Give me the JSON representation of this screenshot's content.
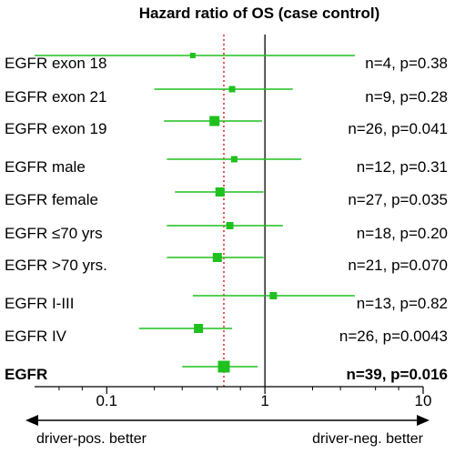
{
  "chart_data": {
    "type": "forest",
    "title": "Hazard ratio of OS (case control)",
    "xscale": "log",
    "xlim": [
      0.035,
      10
    ],
    "xticks": [
      0.1,
      1,
      10
    ],
    "xtick_labels": [
      "0.1",
      "1",
      "10"
    ],
    "reference_line": 1,
    "pooled_line": 0.55,
    "direction_left": "driver-pos. better",
    "direction_right": "driver-neg. better",
    "colors": {
      "marker": "#1fc11f",
      "pooled_line": "#e23030",
      "axis": "#000000"
    },
    "rows": [
      {
        "label": "EGFR exon 18",
        "hr": 0.35,
        "ci": [
          0.035,
          3.7
        ],
        "stats": "n=4, p=0.38",
        "bold": false
      },
      {
        "label": "EGFR exon 21",
        "hr": 0.62,
        "ci": [
          0.2,
          1.5
        ],
        "stats": "n=9, p=0.28",
        "bold": false
      },
      {
        "label": "EGFR exon 19",
        "hr": 0.48,
        "ci": [
          0.23,
          0.96
        ],
        "stats": "n=26, p=0.041",
        "bold": false
      },
      {
        "label": "EGFR male",
        "hr": 0.64,
        "ci": [
          0.24,
          1.7
        ],
        "stats": "n=12, p=0.31",
        "bold": false
      },
      {
        "label": "EGFR female",
        "hr": 0.52,
        "ci": [
          0.27,
          0.98
        ],
        "stats": "n=27, p=0.035",
        "bold": false
      },
      {
        "label": "EGFR ≤70 yrs",
        "hr": 0.6,
        "ci": [
          0.24,
          1.3
        ],
        "stats": "n=18, p=0.20",
        "bold": false
      },
      {
        "label": "EGFR >70 yrs.",
        "hr": 0.5,
        "ci": [
          0.24,
          0.98
        ],
        "stats": "n=21, p=0.070",
        "bold": false
      },
      {
        "label": "EGFR I-III",
        "hr": 1.13,
        "ci": [
          0.35,
          3.7
        ],
        "stats": "n=13, p=0.82",
        "bold": false
      },
      {
        "label": "EGFR IV",
        "hr": 0.38,
        "ci": [
          0.16,
          0.62
        ],
        "stats": "n=26, p=0.0043",
        "bold": false
      },
      {
        "label": "EGFR",
        "hr": 0.55,
        "ci": [
          0.3,
          0.9
        ],
        "stats": "n=39, p=0.016",
        "bold": true
      }
    ]
  }
}
